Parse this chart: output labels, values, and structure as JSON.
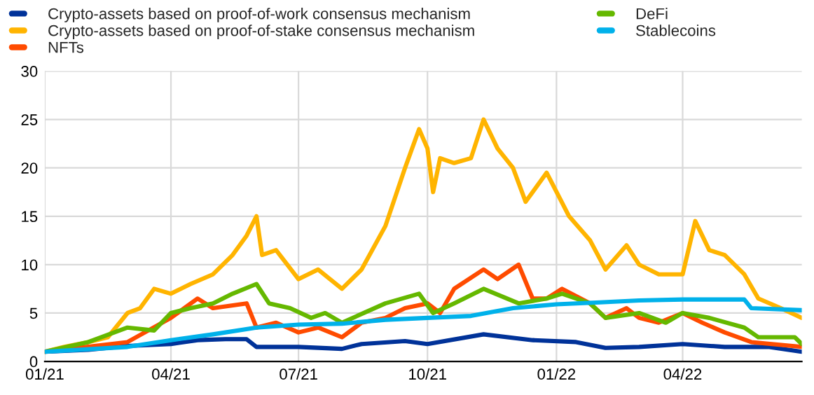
{
  "chart_data": {
    "type": "line",
    "xlim": [
      "2021-01-01",
      "2022-06-25"
    ],
    "xticks": [
      {
        "value": "2021-01-01",
        "label": "01/21"
      },
      {
        "value": "2021-04-01",
        "label": "04/21"
      },
      {
        "value": "2021-07-01",
        "label": "07/21"
      },
      {
        "value": "2021-10-01",
        "label": "10/21"
      },
      {
        "value": "2022-01-01",
        "label": "01/22"
      },
      {
        "value": "2022-04-01",
        "label": "04/22"
      }
    ],
    "ylim": [
      0,
      30
    ],
    "yticks": [
      0,
      5,
      10,
      15,
      20,
      25,
      30
    ],
    "grid": true,
    "legend": "top",
    "marker": "none",
    "line_style": "solid",
    "series": [
      {
        "name": "Crypto-assets based on proof-of-work consensus mechanism",
        "color": "#003299",
        "x": [
          "2021-01-01",
          "2021-02-01",
          "2021-03-01",
          "2021-04-01",
          "2021-04-20",
          "2021-05-10",
          "2021-05-25",
          "2021-06-01",
          "2021-07-01",
          "2021-08-01",
          "2021-08-15",
          "2021-09-15",
          "2021-10-01",
          "2021-11-10",
          "2021-12-15",
          "2022-01-15",
          "2022-02-05",
          "2022-03-01",
          "2022-04-01",
          "2022-05-01",
          "2022-06-01",
          "2022-06-25"
        ],
        "values": [
          1,
          1.2,
          1.6,
          1.8,
          2.2,
          2.3,
          2.3,
          1.5,
          1.5,
          1.3,
          1.8,
          2.1,
          1.8,
          2.8,
          2.2,
          2.0,
          1.4,
          1.5,
          1.8,
          1.5,
          1.5,
          1.0
        ]
      },
      {
        "name": "Crypto-assets based on proof-of-stake consensus mechanism",
        "color": "#ffb400",
        "x": [
          "2021-01-01",
          "2021-01-15",
          "2021-02-01",
          "2021-02-15",
          "2021-03-01",
          "2021-03-10",
          "2021-03-20",
          "2021-04-01",
          "2021-04-15",
          "2021-05-01",
          "2021-05-15",
          "2021-05-25",
          "2021-06-01",
          "2021-06-05",
          "2021-06-15",
          "2021-07-01",
          "2021-07-15",
          "2021-08-01",
          "2021-08-15",
          "2021-09-01",
          "2021-09-15",
          "2021-09-25",
          "2021-10-01",
          "2021-10-05",
          "2021-10-10",
          "2021-10-20",
          "2021-11-01",
          "2021-11-10",
          "2021-11-20",
          "2021-12-01",
          "2021-12-10",
          "2021-12-25",
          "2022-01-10",
          "2022-01-25",
          "2022-02-05",
          "2022-02-20",
          "2022-03-01",
          "2022-03-15",
          "2022-04-01",
          "2022-04-10",
          "2022-04-20",
          "2022-05-01",
          "2022-05-15",
          "2022-05-25",
          "2022-06-10",
          "2022-06-25"
        ],
        "values": [
          1,
          1.5,
          2,
          2.5,
          5,
          5.5,
          7.5,
          7,
          8,
          9,
          11,
          13,
          15,
          11,
          11.5,
          8.5,
          9.5,
          7.5,
          9.5,
          14,
          20,
          24,
          22,
          17.5,
          21,
          20.5,
          21,
          25,
          22,
          20,
          16.5,
          19.5,
          15,
          12.5,
          9.5,
          12,
          10,
          9,
          9,
          14.5,
          11.5,
          11,
          9,
          6.5,
          5.5,
          4.5
        ]
      },
      {
        "name": "NFTs",
        "color": "#ff4b00",
        "x": [
          "2021-01-01",
          "2021-03-01",
          "2021-04-01",
          "2021-04-20",
          "2021-05-01",
          "2021-05-25",
          "2021-06-01",
          "2021-06-15",
          "2021-07-01",
          "2021-07-15",
          "2021-08-01",
          "2021-08-15",
          "2021-09-01",
          "2021-09-15",
          "2021-10-01",
          "2021-10-10",
          "2021-10-20",
          "2021-11-10",
          "2021-11-20",
          "2021-12-05",
          "2021-12-15",
          "2021-12-25",
          "2022-01-05",
          "2022-01-25",
          "2022-02-05",
          "2022-02-20",
          "2022-03-01",
          "2022-03-15",
          "2022-04-01",
          "2022-04-15",
          "2022-05-01",
          "2022-05-20",
          "2022-06-25"
        ],
        "values": [
          1,
          2,
          4.5,
          6.5,
          5.5,
          6,
          3.5,
          4,
          3,
          3.5,
          2.5,
          4,
          4.5,
          5.5,
          6,
          5,
          7.5,
          9.5,
          8.5,
          10,
          6.5,
          6.5,
          7.5,
          6,
          4.5,
          5.5,
          4.5,
          4,
          5,
          4,
          3,
          2,
          1.5
        ]
      },
      {
        "name": "DeFi",
        "color": "#65b800",
        "x": [
          "2021-01-01",
          "2021-02-01",
          "2021-03-01",
          "2021-03-20",
          "2021-04-01",
          "2021-04-15",
          "2021-05-01",
          "2021-05-15",
          "2021-06-01",
          "2021-06-10",
          "2021-06-25",
          "2021-07-10",
          "2021-07-20",
          "2021-08-01",
          "2021-09-01",
          "2021-09-25",
          "2021-10-05",
          "2021-10-20",
          "2021-11-10",
          "2021-12-05",
          "2021-12-25",
          "2022-01-05",
          "2022-01-25",
          "2022-02-05",
          "2022-03-01",
          "2022-03-20",
          "2022-04-01",
          "2022-04-20",
          "2022-05-15",
          "2022-05-25",
          "2022-06-20",
          "2022-06-25"
        ],
        "values": [
          1,
          2,
          3.5,
          3.2,
          5,
          5.5,
          6,
          7,
          8,
          6,
          5.5,
          4.5,
          5,
          4,
          6,
          7,
          5,
          6,
          7.5,
          6,
          6.5,
          7,
          6,
          4.5,
          5,
          4,
          5,
          4.5,
          3.5,
          2.5,
          2.5,
          1.8
        ]
      },
      {
        "name": "Stablecoins",
        "color": "#00b1ea",
        "x": [
          "2021-01-01",
          "2021-03-01",
          "2021-04-01",
          "2021-05-01",
          "2021-06-01",
          "2021-07-01",
          "2021-08-01",
          "2021-09-01",
          "2021-10-01",
          "2021-11-01",
          "2021-12-01",
          "2022-01-01",
          "2022-02-01",
          "2022-03-01",
          "2022-04-01",
          "2022-05-15",
          "2022-05-20",
          "2022-06-25"
        ],
        "values": [
          1,
          1.5,
          2.2,
          2.8,
          3.5,
          3.8,
          3.9,
          4.3,
          4.5,
          4.7,
          5.5,
          5.9,
          6.1,
          6.3,
          6.4,
          6.4,
          5.5,
          5.3
        ]
      }
    ]
  }
}
